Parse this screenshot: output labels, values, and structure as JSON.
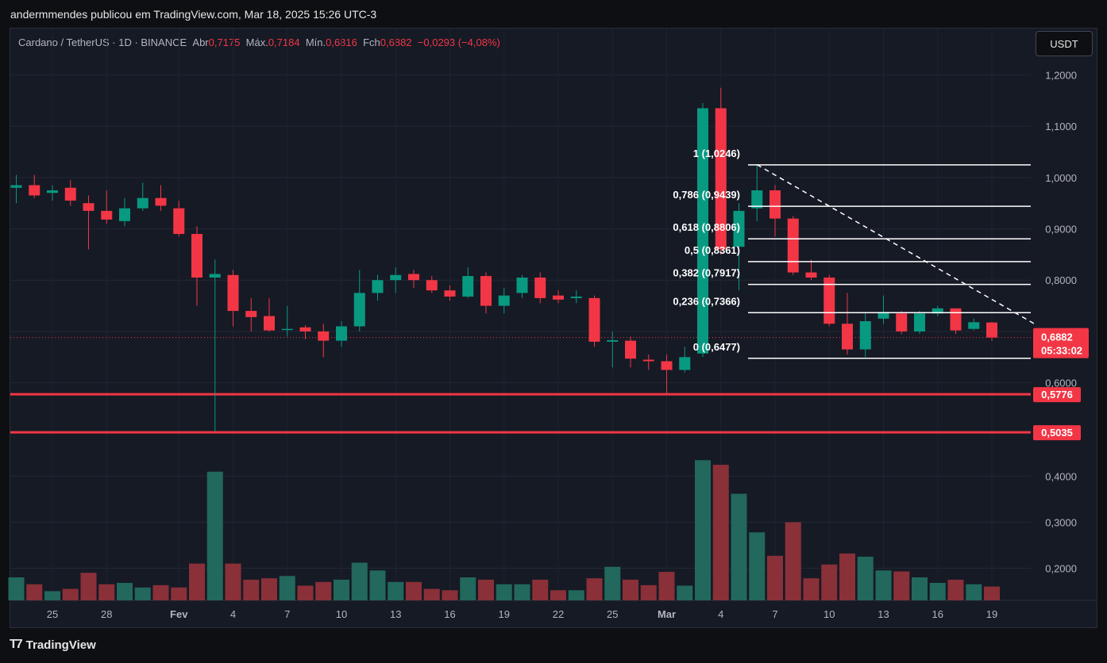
{
  "publish_line": "andermmendes publicou em TradingView.com, Mar 18, 2025 15:26 UTC-3",
  "footer_brand": "TradingView",
  "currency_button": "USDT",
  "legend": {
    "symbol": "Cardano / TetherUS · 1D · BINANCE",
    "open_label": "Abr",
    "open_value": "0,7175",
    "high_label": "Máx.",
    "high_value": "0,7184",
    "low_label": "Mín.",
    "low_value": "0,6816",
    "close_label": "Fch",
    "close_value": "0,6882",
    "change": "−0,0293 (−4,08%)"
  },
  "colors": {
    "up": "#089981",
    "down": "#f23645",
    "background": "#161a25"
  },
  "chart_data": {
    "type": "candlestick",
    "price_axis": {
      "range": [
        0.55,
        1.23
      ],
      "ticks": [
        "1,2000",
        "1,1000",
        "1,0000",
        "0,9000",
        "0,8000",
        "0,7000",
        "0,6000"
      ]
    },
    "volume_axis": {
      "range": [
        0.13,
        0.47
      ],
      "ticks": [
        "0,4000",
        "0,3000",
        "0,2000"
      ]
    },
    "x_ticks": [
      {
        "i": 2,
        "label": "25"
      },
      {
        "i": 5,
        "label": "28"
      },
      {
        "i": 9,
        "label": "Fev"
      },
      {
        "i": 12,
        "label": "4"
      },
      {
        "i": 15,
        "label": "7"
      },
      {
        "i": 18,
        "label": "10"
      },
      {
        "i": 21,
        "label": "13"
      },
      {
        "i": 24,
        "label": "16"
      },
      {
        "i": 27,
        "label": "19"
      },
      {
        "i": 30,
        "label": "22"
      },
      {
        "i": 33,
        "label": "25"
      },
      {
        "i": 36,
        "label": "Mar"
      },
      {
        "i": 39,
        "label": "4"
      },
      {
        "i": 42,
        "label": "7"
      },
      {
        "i": 45,
        "label": "10"
      },
      {
        "i": 48,
        "label": "13"
      },
      {
        "i": 51,
        "label": "16"
      },
      {
        "i": 54,
        "label": "19"
      }
    ],
    "candles": [
      {
        "o": 0.98,
        "h": 1.005,
        "l": 0.95,
        "c": 0.985,
        "v": 0.18
      },
      {
        "o": 0.985,
        "h": 1.005,
        "l": 0.96,
        "c": 0.965,
        "v": 0.165
      },
      {
        "o": 0.97,
        "h": 0.985,
        "l": 0.955,
        "c": 0.975,
        "v": 0.15
      },
      {
        "o": 0.98,
        "h": 0.995,
        "l": 0.945,
        "c": 0.955,
        "v": 0.155
      },
      {
        "o": 0.95,
        "h": 0.965,
        "l": 0.86,
        "c": 0.935,
        "v": 0.19
      },
      {
        "o": 0.935,
        "h": 0.975,
        "l": 0.91,
        "c": 0.918,
        "v": 0.165
      },
      {
        "o": 0.915,
        "h": 0.96,
        "l": 0.905,
        "c": 0.94,
        "v": 0.168
      },
      {
        "o": 0.94,
        "h": 0.99,
        "l": 0.935,
        "c": 0.96,
        "v": 0.158
      },
      {
        "o": 0.96,
        "h": 0.985,
        "l": 0.935,
        "c": 0.945,
        "v": 0.163
      },
      {
        "o": 0.94,
        "h": 0.955,
        "l": 0.885,
        "c": 0.89,
        "v": 0.158
      },
      {
        "o": 0.89,
        "h": 0.905,
        "l": 0.75,
        "c": 0.805,
        "v": 0.21
      },
      {
        "o": 0.805,
        "h": 0.84,
        "l": 0.505,
        "c": 0.812,
        "v": 0.41
      },
      {
        "o": 0.81,
        "h": 0.82,
        "l": 0.71,
        "c": 0.74,
        "v": 0.21
      },
      {
        "o": 0.74,
        "h": 0.765,
        "l": 0.7,
        "c": 0.728,
        "v": 0.175
      },
      {
        "o": 0.73,
        "h": 0.765,
        "l": 0.7,
        "c": 0.702,
        "v": 0.178
      },
      {
        "o": 0.703,
        "h": 0.75,
        "l": 0.69,
        "c": 0.705,
        "v": 0.183
      },
      {
        "o": 0.708,
        "h": 0.712,
        "l": 0.685,
        "c": 0.7,
        "v": 0.162
      },
      {
        "o": 0.7,
        "h": 0.715,
        "l": 0.65,
        "c": 0.682,
        "v": 0.17
      },
      {
        "o": 0.682,
        "h": 0.72,
        "l": 0.67,
        "c": 0.71,
        "v": 0.175
      },
      {
        "o": 0.71,
        "h": 0.82,
        "l": 0.7,
        "c": 0.775,
        "v": 0.212
      },
      {
        "o": 0.775,
        "h": 0.81,
        "l": 0.76,
        "c": 0.8,
        "v": 0.195
      },
      {
        "o": 0.8,
        "h": 0.825,
        "l": 0.775,
        "c": 0.81,
        "v": 0.17
      },
      {
        "o": 0.812,
        "h": 0.82,
        "l": 0.785,
        "c": 0.8,
        "v": 0.17
      },
      {
        "o": 0.8,
        "h": 0.808,
        "l": 0.775,
        "c": 0.78,
        "v": 0.155
      },
      {
        "o": 0.78,
        "h": 0.79,
        "l": 0.76,
        "c": 0.768,
        "v": 0.152
      },
      {
        "o": 0.768,
        "h": 0.825,
        "l": 0.765,
        "c": 0.808,
        "v": 0.18
      },
      {
        "o": 0.808,
        "h": 0.815,
        "l": 0.735,
        "c": 0.75,
        "v": 0.175
      },
      {
        "o": 0.75,
        "h": 0.785,
        "l": 0.735,
        "c": 0.77,
        "v": 0.165
      },
      {
        "o": 0.775,
        "h": 0.81,
        "l": 0.765,
        "c": 0.805,
        "v": 0.165
      },
      {
        "o": 0.805,
        "h": 0.815,
        "l": 0.755,
        "c": 0.765,
        "v": 0.175
      },
      {
        "o": 0.77,
        "h": 0.78,
        "l": 0.755,
        "c": 0.762,
        "v": 0.152
      },
      {
        "o": 0.765,
        "h": 0.78,
        "l": 0.755,
        "c": 0.768,
        "v": 0.152
      },
      {
        "o": 0.765,
        "h": 0.77,
        "l": 0.67,
        "c": 0.68,
        "v": 0.178
      },
      {
        "o": 0.68,
        "h": 0.7,
        "l": 0.63,
        "c": 0.683,
        "v": 0.203
      },
      {
        "o": 0.682,
        "h": 0.69,
        "l": 0.63,
        "c": 0.647,
        "v": 0.175
      },
      {
        "o": 0.645,
        "h": 0.655,
        "l": 0.625,
        "c": 0.642,
        "v": 0.163
      },
      {
        "o": 0.642,
        "h": 0.655,
        "l": 0.58,
        "c": 0.625,
        "v": 0.192
      },
      {
        "o": 0.625,
        "h": 0.67,
        "l": 0.62,
        "c": 0.65,
        "v": 0.162
      },
      {
        "o": 0.657,
        "h": 1.145,
        "l": 0.65,
        "c": 1.135,
        "v": 0.435
      },
      {
        "o": 1.135,
        "h": 1.175,
        "l": 0.85,
        "c": 0.86,
        "v": 0.425
      },
      {
        "o": 0.865,
        "h": 0.95,
        "l": 0.78,
        "c": 0.935,
        "v": 0.362
      },
      {
        "o": 0.94,
        "h": 1.025,
        "l": 0.915,
        "c": 0.975,
        "v": 0.278
      },
      {
        "o": 0.975,
        "h": 0.985,
        "l": 0.885,
        "c": 0.92,
        "v": 0.227
      },
      {
        "o": 0.92,
        "h": 0.925,
        "l": 0.81,
        "c": 0.815,
        "v": 0.3
      },
      {
        "o": 0.815,
        "h": 0.84,
        "l": 0.8,
        "c": 0.805,
        "v": 0.178
      },
      {
        "o": 0.805,
        "h": 0.81,
        "l": 0.71,
        "c": 0.715,
        "v": 0.208
      },
      {
        "o": 0.715,
        "h": 0.775,
        "l": 0.655,
        "c": 0.665,
        "v": 0.232
      },
      {
        "o": 0.665,
        "h": 0.735,
        "l": 0.65,
        "c": 0.72,
        "v": 0.225
      },
      {
        "o": 0.725,
        "h": 0.77,
        "l": 0.715,
        "c": 0.738,
        "v": 0.195
      },
      {
        "o": 0.735,
        "h": 0.74,
        "l": 0.695,
        "c": 0.7,
        "v": 0.193
      },
      {
        "o": 0.7,
        "h": 0.74,
        "l": 0.695,
        "c": 0.735,
        "v": 0.18
      },
      {
        "o": 0.735,
        "h": 0.75,
        "l": 0.73,
        "c": 0.745,
        "v": 0.168
      },
      {
        "o": 0.745,
        "h": 0.745,
        "l": 0.695,
        "c": 0.702,
        "v": 0.175
      },
      {
        "o": 0.705,
        "h": 0.725,
        "l": 0.702,
        "c": 0.718,
        "v": 0.165
      },
      {
        "o": 0.7175,
        "h": 0.7184,
        "l": 0.6816,
        "c": 0.6882,
        "v": 0.16
      }
    ],
    "fib_levels": [
      {
        "label": "1 (1,0246)",
        "price": 1.0246
      },
      {
        "label": "0,786 (0,9439)",
        "price": 0.9439
      },
      {
        "label": "0,618 (0,8806)",
        "price": 0.8806
      },
      {
        "label": "0,5 (0,8361)",
        "price": 0.8361
      },
      {
        "label": "0,382 (0,7917)",
        "price": 0.7917
      },
      {
        "label": "0,236 (0,7366)",
        "price": 0.7366
      },
      {
        "label": "0 (0,6477)",
        "price": 0.6477
      }
    ],
    "horizontal_lines": [
      {
        "price": 0.5776,
        "label": "0,5776"
      },
      {
        "price": 0.5035,
        "label": "0,5035"
      }
    ],
    "current_price": {
      "price": 0.6882,
      "label": "0,6882",
      "countdown": "05:33:02"
    },
    "trendline": {
      "from": {
        "i": 41,
        "price": 1.025
      },
      "to": {
        "i": 56.5,
        "price": 0.712
      }
    }
  }
}
